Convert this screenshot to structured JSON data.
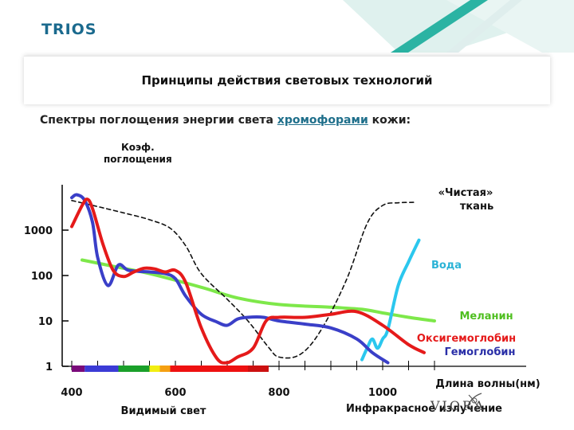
{
  "header": {
    "logo_text": "TRIOS",
    "title": "Принципы действия световых технологий",
    "subtitle_prefix": "Спектры поглощения энергии света",
    "subtitle_link": "хромофорами",
    "subtitle_suffix": "кожи:"
  },
  "footer": {
    "brand": "VIORA"
  },
  "colors": {
    "accent": "#1b6a8e",
    "teal": "#2bb3a3",
    "link": "#1f6f8b"
  },
  "chart_data": {
    "type": "line",
    "ylabel_line1": "Коэф.",
    "ylabel_line2": "поглощения",
    "xlabel": "Длина волны(нм)",
    "y_scale": "log",
    "ylim": [
      1,
      10000
    ],
    "xlim": [
      380,
      1100
    ],
    "y_ticks": [
      {
        "value": 1,
        "label": "1"
      },
      {
        "value": 10,
        "label": "10"
      },
      {
        "value": 100,
        "label": "100"
      },
      {
        "value": 1000,
        "label": "1000"
      }
    ],
    "x_ticks": [
      {
        "value": 400,
        "label": "400"
      },
      {
        "value": 600,
        "label": "600"
      },
      {
        "value": 800,
        "label": "800"
      },
      {
        "value": 1000,
        "label": "1000"
      }
    ],
    "region_labels": {
      "visible": "Видимый свет",
      "infrared": "Инфракрасное излучение"
    },
    "spectrum_bands": [
      {
        "from": 400,
        "to": 425,
        "color": "#7a0a7a"
      },
      {
        "from": 425,
        "to": 490,
        "color": "#3b3bd6"
      },
      {
        "from": 490,
        "to": 550,
        "color": "#1aa02a"
      },
      {
        "from": 550,
        "to": 570,
        "color": "#f2ee12"
      },
      {
        "from": 570,
        "to": 590,
        "color": "#f5a012"
      },
      {
        "from": 590,
        "to": 740,
        "color": "#ee1111"
      },
      {
        "from": 740,
        "to": 780,
        "color": "#cc1111"
      }
    ],
    "series": [
      {
        "name": "«Чистая» ткань",
        "color": "#111111",
        "style": "dashed",
        "points": [
          [
            400,
            4500
          ],
          [
            450,
            3300
          ],
          [
            500,
            2400
          ],
          [
            550,
            1700
          ],
          [
            590,
            1100
          ],
          [
            620,
            450
          ],
          [
            650,
            110
          ],
          [
            700,
            30
          ],
          [
            740,
            10
          ],
          [
            780,
            2.6
          ],
          [
            800,
            1.6
          ],
          [
            840,
            1.8
          ],
          [
            880,
            6
          ],
          [
            930,
            80
          ],
          [
            970,
            1400
          ],
          [
            1000,
            3500
          ],
          [
            1030,
            4000
          ],
          [
            1060,
            4100
          ]
        ]
      },
      {
        "name": "Вода",
        "color": "#2bc7ee",
        "style": "solid",
        "points": [
          [
            960,
            1.4
          ],
          [
            970,
            2.5
          ],
          [
            980,
            4
          ],
          [
            990,
            2.5
          ],
          [
            1000,
            4
          ],
          [
            1010,
            6.5
          ],
          [
            1030,
            60
          ],
          [
            1050,
            200
          ],
          [
            1070,
            600
          ]
        ]
      },
      {
        "name": "Меланин",
        "color": "#7ee84a",
        "style": "solid",
        "points": [
          [
            420,
            220
          ],
          [
            480,
            160
          ],
          [
            550,
            110
          ],
          [
            650,
            55
          ],
          [
            720,
            32
          ],
          [
            800,
            23
          ],
          [
            900,
            20
          ],
          [
            960,
            18
          ],
          [
            1000,
            15
          ],
          [
            1050,
            12
          ],
          [
            1100,
            10
          ]
        ]
      },
      {
        "name": "Оксигемоглобин",
        "color": "#e51a1a",
        "style": "solid",
        "points": [
          [
            400,
            1200
          ],
          [
            420,
            3500
          ],
          [
            430,
            4800
          ],
          [
            440,
            3000
          ],
          [
            460,
            500
          ],
          [
            480,
            130
          ],
          [
            500,
            95
          ],
          [
            520,
            120
          ],
          [
            540,
            145
          ],
          [
            560,
            140
          ],
          [
            580,
            120
          ],
          [
            600,
            130
          ],
          [
            620,
            70
          ],
          [
            650,
            7
          ],
          [
            680,
            1.5
          ],
          [
            700,
            1.2
          ],
          [
            720,
            1.6
          ],
          [
            750,
            2.5
          ],
          [
            775,
            10
          ],
          [
            800,
            12
          ],
          [
            850,
            12
          ],
          [
            900,
            14
          ],
          [
            950,
            16
          ],
          [
            1000,
            8
          ],
          [
            1050,
            3
          ],
          [
            1080,
            2
          ]
        ]
      },
      {
        "name": "Гемоглобин",
        "color": "#3a3fc8",
        "style": "solid",
        "points": [
          [
            400,
            5200
          ],
          [
            410,
            6000
          ],
          [
            425,
            4500
          ],
          [
            440,
            1500
          ],
          [
            450,
            250
          ],
          [
            470,
            60
          ],
          [
            490,
            170
          ],
          [
            510,
            130
          ],
          [
            550,
            120
          ],
          [
            580,
            110
          ],
          [
            600,
            85
          ],
          [
            620,
            35
          ],
          [
            650,
            14
          ],
          [
            680,
            9.5
          ],
          [
            700,
            8
          ],
          [
            720,
            11
          ],
          [
            740,
            12
          ],
          [
            770,
            12
          ],
          [
            800,
            10
          ],
          [
            850,
            8.5
          ],
          [
            900,
            7
          ],
          [
            950,
            4
          ],
          [
            980,
            2
          ],
          [
            1010,
            1.2
          ]
        ]
      }
    ],
    "labels": [
      {
        "series": "«Чистая» ткань",
        "line1": "«Чистая»",
        "line2": "ткань",
        "color": "#111111"
      },
      {
        "series": "Вода",
        "line1": "Вода",
        "color": "#2bb3d6"
      },
      {
        "series": "Меланин",
        "line1": "Меланин",
        "color": "#4fbf20"
      },
      {
        "series": "Оксигемоглобин",
        "line1": "Оксигемоглобин",
        "color": "#e51a1a"
      },
      {
        "series": "Гемоглобин",
        "line1": "Гемоглобин",
        "color": "#2a2fa8"
      }
    ]
  }
}
